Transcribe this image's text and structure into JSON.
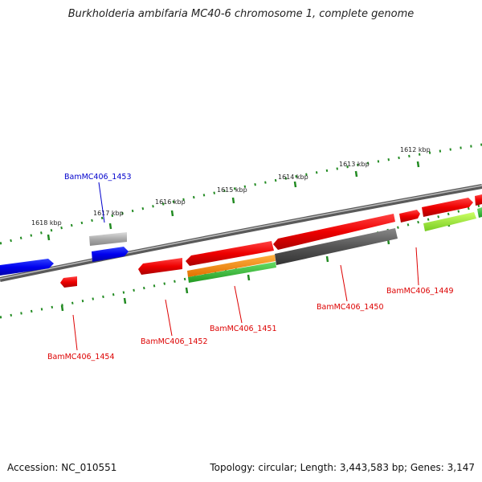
{
  "title": "Burkholderia ambifaria MC40-6 chromosome 1, complete genome",
  "footer": {
    "accession": "Accession: NC_010551",
    "summary": "Topology: circular; Length: 3,443,583 bp; Genes: 3,147"
  },
  "ticks": [
    {
      "kbp": 1612,
      "label": "1612 kbp"
    },
    {
      "kbp": 1613,
      "label": "1613 kbp"
    },
    {
      "kbp": 1614,
      "label": "1614 kbp"
    },
    {
      "kbp": 1615,
      "label": "1615 kbp"
    },
    {
      "kbp": 1616,
      "label": "1616 kbp"
    },
    {
      "kbp": 1617,
      "label": "1617 kbp"
    },
    {
      "kbp": 1618,
      "label": "1618 kbp"
    }
  ],
  "genes": [
    {
      "name": "BamMC406_1449",
      "color": "#dd0000"
    },
    {
      "name": "BamMC406_1450",
      "color": "#dd0000"
    },
    {
      "name": "BamMC406_1451",
      "color": "#dd0000"
    },
    {
      "name": "BamMC406_1452",
      "color": "#dd0000"
    },
    {
      "name": "BamMC406_1453",
      "color": "#0000cc"
    },
    {
      "name": "BamMC406_1454",
      "color": "#dd0000"
    }
  ],
  "colors": {
    "backbone": "#6f6f6f",
    "ticks": "#228b22",
    "feature_red": "#ee0000",
    "feature_blue": "#0000ee",
    "feature_gray": "#555555",
    "feature_lightgray": "#aaaaaa",
    "feature_orange": "#ff8c00",
    "feature_green": "#33bb33",
    "feature_lime": "#99ee33"
  }
}
